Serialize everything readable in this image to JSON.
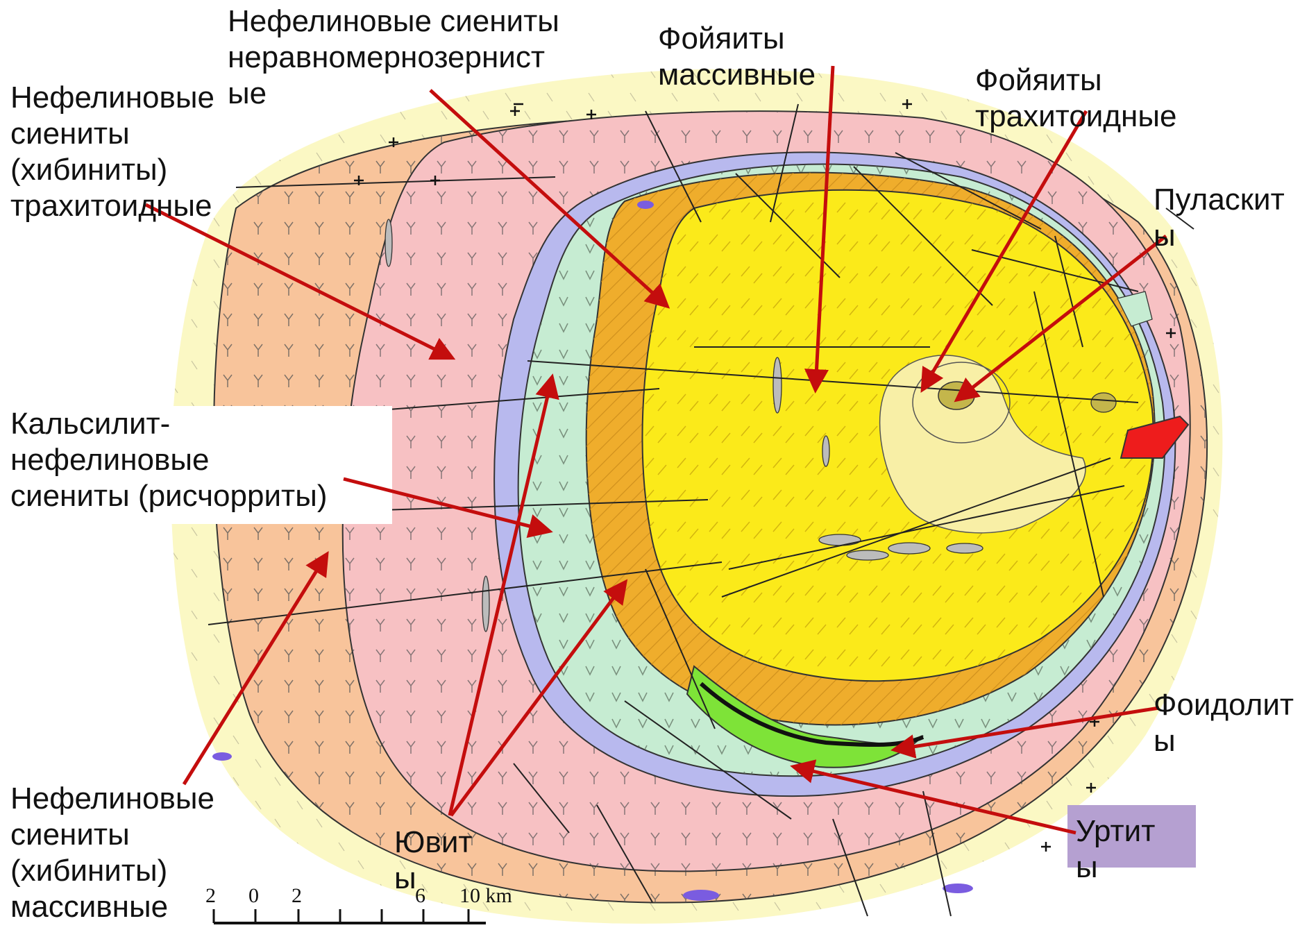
{
  "map": {
    "colors": {
      "background": "#fbf8c4",
      "outer_ring": "#f8c49b",
      "pink_ring": "#f7c1c3",
      "mint": "#c6ecd2",
      "lavender": "#b8b9ee",
      "orange": "#efad2c",
      "core": "#fbea1a",
      "pale": "#f8efa6",
      "olive": "#c4b64b",
      "green": "#7ee338",
      "red": "#ee1c1c",
      "purple": "#7a5ce0",
      "arrow": "#c40d0d",
      "urtite_box": "#b5a0d1"
    },
    "labels": [
      {
        "id": "foyaites-massive",
        "lines": [
          "Фойяиты",
          "массивные"
        ]
      },
      {
        "id": "nepheline-uneven",
        "lines": [
          "Нефелиновые сиениты",
          "неравномернозернист",
          "ые"
        ]
      },
      {
        "id": "khibinites-trachytoid",
        "lines": [
          "Нефелиновые",
          "сиениты",
          "(хибиниты)",
          "трахитоидные"
        ]
      },
      {
        "id": "foyaites-trachytoid",
        "lines": [
          "Фойяиты",
          "трахитоидные"
        ]
      },
      {
        "id": "pulaskites",
        "lines": [
          "Пуласкит",
          "ы"
        ]
      },
      {
        "id": "rischorrites",
        "lines": [
          "Кальсилит-",
          "нефелиновые",
          "сиениты (рисчорриты)"
        ]
      },
      {
        "id": "foidolites",
        "lines": [
          "Фоидолит",
          "ы"
        ]
      },
      {
        "id": "khibinites-massive",
        "lines": [
          "Нефелиновые",
          "сиениты",
          "(хибиниты)",
          "массивные"
        ]
      },
      {
        "id": "juvites",
        "lines": [
          "Ювит",
          "ы"
        ]
      },
      {
        "id": "urtites",
        "lines": [
          "Уртит",
          "ы"
        ]
      }
    ],
    "scale_bar": {
      "ticks": [
        "2",
        "0",
        "2",
        "6",
        "10 km"
      ]
    }
  }
}
